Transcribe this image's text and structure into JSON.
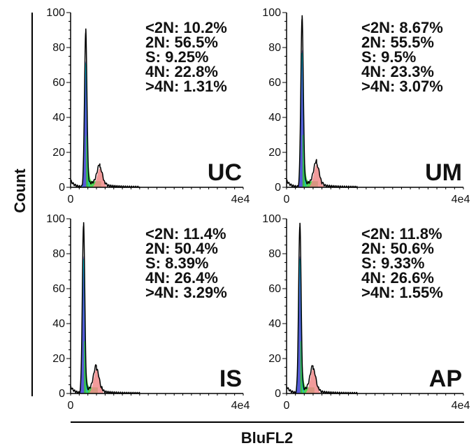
{
  "figure": {
    "ylabel": "Count",
    "xlabel": "BluFL2"
  },
  "chart_data": [
    {
      "type": "histogram",
      "panel_label": "UC",
      "x_tick_labels": [
        "0",
        "4e4"
      ],
      "y_tick_labels": [
        "0",
        "20",
        "40",
        "60",
        "80",
        "100"
      ],
      "xlim": [
        0,
        40000
      ],
      "ylim": [
        0,
        100
      ],
      "stats": [
        "<2N: 10.2%",
        "2N: 56.5%",
        "S: 9.25%",
        "4N: 22.8%",
        ">4N: 1.31%"
      ],
      "peak_2n": {
        "x": 3500,
        "count": 88
      },
      "peak_4n": {
        "x": 6800,
        "count": 11
      },
      "colors": {
        "g1": "#3b3bd0",
        "s_phase": "#33cc33",
        "g2m": "#f08a8a",
        "fit": "#00bcd4",
        "trace": "#000000"
      }
    },
    {
      "type": "histogram",
      "panel_label": "UM",
      "x_tick_labels": [
        "0",
        "4e4"
      ],
      "y_tick_labels": [
        "0",
        "20",
        "40",
        "60",
        "80",
        "100"
      ],
      "xlim": [
        0,
        40000
      ],
      "ylim": [
        0,
        100
      ],
      "stats": [
        "<2N: 8.67%",
        "2N: 55.5%",
        "S: 9.5%",
        "4N: 23.3%",
        ">4N: 3.07%"
      ],
      "peak_2n": {
        "x": 3500,
        "count": 96
      },
      "peak_4n": {
        "x": 6800,
        "count": 13
      },
      "colors": {
        "g1": "#3b3bd0",
        "s_phase": "#33cc33",
        "g2m": "#f08a8a",
        "fit": "#00bcd4",
        "trace": "#000000"
      }
    },
    {
      "type": "histogram",
      "panel_label": "IS",
      "x_tick_labels": [
        "0",
        "4e4"
      ],
      "y_tick_labels": [
        "0",
        "20",
        "40",
        "60",
        "80",
        "100"
      ],
      "xlim": [
        0,
        40000
      ],
      "ylim": [
        0,
        100
      ],
      "stats": [
        "<2N: 11.4%",
        "2N: 50.4%",
        "S: 8.39%",
        "4N: 26.4%",
        ">4N: 3.29%"
      ],
      "peak_2n": {
        "x": 3000,
        "count": 96
      },
      "peak_4n": {
        "x": 6000,
        "count": 14
      },
      "colors": {
        "g1": "#3b3bd0",
        "s_phase": "#33cc33",
        "g2m": "#f08a8a",
        "fit": "#00bcd4",
        "trace": "#000000"
      }
    },
    {
      "type": "histogram",
      "panel_label": "AP",
      "x_tick_labels": [
        "0",
        "4e4"
      ],
      "y_tick_labels": [
        "0",
        "20",
        "40",
        "60",
        "80",
        "100"
      ],
      "xlim": [
        0,
        40000
      ],
      "ylim": [
        0,
        100
      ],
      "stats": [
        "<2N: 11.8%",
        "2N: 50.6%",
        "S: 9.33%",
        "4N: 26.6%",
        ">4N: 1.55%"
      ],
      "peak_2n": {
        "x": 3000,
        "count": 96
      },
      "peak_4n": {
        "x": 6000,
        "count": 14
      },
      "colors": {
        "g1": "#3b3bd0",
        "s_phase": "#33cc33",
        "g2m": "#f08a8a",
        "fit": "#00bcd4",
        "trace": "#000000"
      }
    }
  ]
}
